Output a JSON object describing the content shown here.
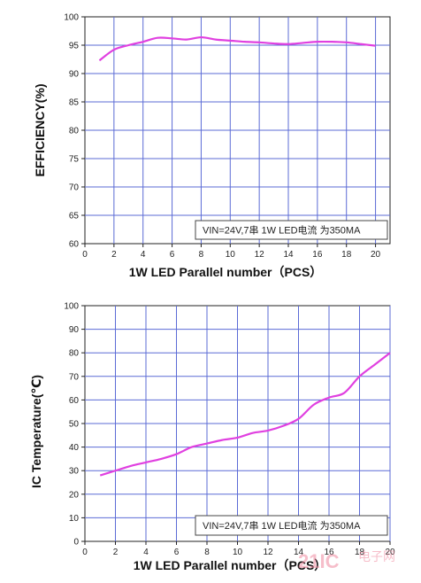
{
  "chart_data": [
    {
      "type": "line",
      "xlabel": "1W  LED Parallel number（PCS）",
      "ylabel": "EFFICIENCY(%)",
      "xlim": [
        0,
        21
      ],
      "ylim": [
        60,
        100
      ],
      "xticks": [
        0,
        2,
        4,
        6,
        8,
        10,
        12,
        14,
        16,
        18,
        20
      ],
      "yticks": [
        60,
        65,
        70,
        75,
        80,
        85,
        90,
        95,
        100
      ],
      "grid": true,
      "annotation": "VIN=24V,7串 1W LED电流 为350MA",
      "color": "#e040e0",
      "series": [
        {
          "x": [
            1,
            2,
            3,
            4,
            5,
            6,
            7,
            8,
            9,
            10,
            11,
            12,
            13,
            14,
            15,
            16,
            17,
            18,
            19,
            20
          ],
          "y": [
            92.3,
            94.2,
            95.0,
            95.6,
            96.3,
            96.2,
            96.0,
            96.4,
            96.0,
            95.8,
            95.6,
            95.5,
            95.3,
            95.2,
            95.4,
            95.6,
            95.6,
            95.5,
            95.2,
            94.9
          ]
        }
      ]
    },
    {
      "type": "line",
      "xlabel": "1W  LED Parallel number（PCS）",
      "ylabel": "IC Temperature(℃)",
      "xlim": [
        0,
        20
      ],
      "ylim": [
        0,
        100
      ],
      "xticks": [
        0,
        2,
        4,
        6,
        8,
        10,
        12,
        14,
        16,
        18,
        20
      ],
      "yticks": [
        0,
        10,
        20,
        30,
        40,
        50,
        60,
        70,
        80,
        90,
        100
      ],
      "grid": true,
      "annotation": "VIN=24V,7串 1W LED电流 为350MA",
      "color": "#e040e0",
      "series": [
        {
          "x": [
            1,
            2,
            3,
            4,
            5,
            6,
            7,
            8,
            9,
            10,
            11,
            12,
            13,
            14,
            15,
            16,
            17,
            18,
            19,
            20
          ],
          "y": [
            28,
            30,
            32,
            33.5,
            35,
            37,
            40,
            41.5,
            43,
            44,
            46,
            47,
            49,
            52,
            58,
            61,
            63,
            70,
            75,
            80
          ]
        }
      ]
    }
  ],
  "watermark": {
    "brand": "21IC",
    "sub": "电子网"
  }
}
